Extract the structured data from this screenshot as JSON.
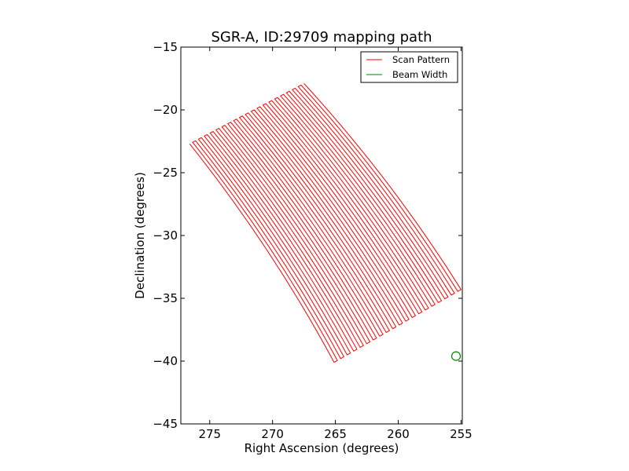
{
  "chart_data": {
    "type": "line",
    "title": "SGR-A, ID:29709 mapping path",
    "xlabel": "Right Ascension (degrees)",
    "ylabel": "Declination (degrees)",
    "xlim": [
      277.3,
      254.9
    ],
    "ylim": [
      -45,
      -15
    ],
    "x_inverted": true,
    "xticks": [
      275,
      270,
      265,
      260,
      255
    ],
    "yticks": [
      -15,
      -20,
      -25,
      -30,
      -35,
      -40,
      -45
    ],
    "xtick_labels": [
      "275",
      "270",
      "265",
      "260",
      "255"
    ],
    "ytick_labels": [
      "−15",
      "−20",
      "−25",
      "−30",
      "−35",
      "−40",
      "−45"
    ],
    "legend_position": "upper-right",
    "grid": false,
    "series": [
      {
        "name": "Scan Pattern",
        "color": "#ff0000",
        "scan_count": 40,
        "first_scan": {
          "x": [
            276.6,
            265.1
          ],
          "y": [
            -22.7,
            -40.1
          ]
        },
        "last_scan": {
          "x": [
            267.5,
            255.0
          ],
          "y": [
            -17.9,
            -34.3
          ]
        },
        "bow": 0.6
      },
      {
        "name": "Beam Width",
        "color": "#008000",
        "marker": "circle",
        "x": [
          255.4
        ],
        "y": [
          -39.6
        ]
      }
    ]
  }
}
